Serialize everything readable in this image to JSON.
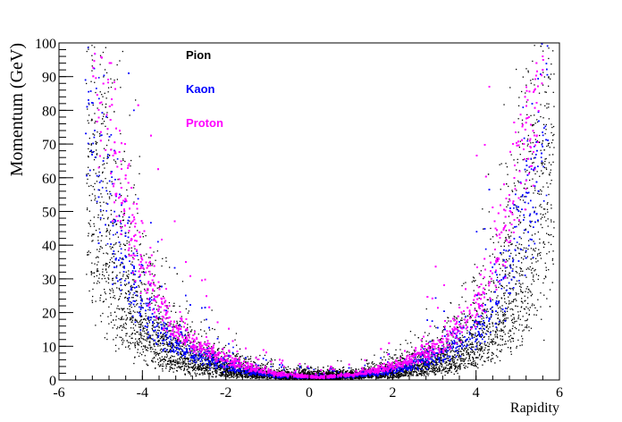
{
  "chart_data": {
    "type": "scatter",
    "title": "",
    "xlabel": "Rapidity",
    "ylabel": "Momentum (GeV)",
    "xlim": [
      -6,
      6
    ],
    "ylim": [
      0,
      100
    ],
    "x_ticks": [
      "-6",
      "-4",
      "-2",
      "0",
      "2",
      "4",
      "6"
    ],
    "y_ticks": [
      "0",
      "10",
      "20",
      "30",
      "40",
      "50",
      "60",
      "70",
      "80",
      "90",
      "100"
    ],
    "grid": false,
    "legend_position": "top-left, inside plot area",
    "series": [
      {
        "name": "Pion",
        "color": "#000000",
        "band_center": [
          [
            0,
            1
          ],
          [
            1,
            1.5
          ],
          [
            2,
            3
          ],
          [
            3,
            6
          ],
          [
            3.5,
            9
          ],
          [
            4,
            14
          ],
          [
            4.5,
            24
          ],
          [
            5,
            40
          ],
          [
            5.5,
            68
          ],
          [
            5.9,
            100
          ]
        ]
      },
      {
        "name": "Kaon",
        "color": "#0000ff",
        "band_center": [
          [
            0,
            1
          ],
          [
            1,
            1.5
          ],
          [
            2,
            3.5
          ],
          [
            3,
            8
          ],
          [
            3.5,
            12
          ],
          [
            4,
            18
          ],
          [
            4.5,
            30
          ],
          [
            5,
            50
          ],
          [
            5.4,
            78
          ],
          [
            5.6,
            100
          ]
        ]
      },
      {
        "name": "Proton",
        "color": "#ff00ff",
        "band_center": [
          [
            0,
            1
          ],
          [
            1,
            2
          ],
          [
            2,
            5
          ],
          [
            3,
            11
          ],
          [
            3.5,
            17
          ],
          [
            4,
            28
          ],
          [
            4.5,
            45
          ],
          [
            5,
            72
          ],
          [
            5.3,
            95
          ],
          [
            5.4,
            100
          ]
        ]
      }
    ]
  }
}
